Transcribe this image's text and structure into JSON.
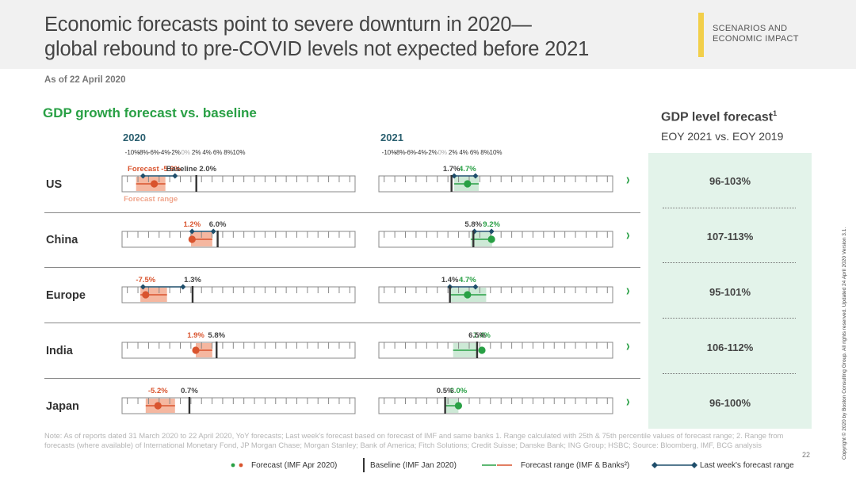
{
  "header": {
    "title_line1": "Economic forecasts point to severe downturn in 2020—",
    "title_line2": "global rebound to pre-COVID levels not expected before 2021",
    "tag_line1": "SCENARIOS AND",
    "tag_line2": "ECONOMIC IMPACT"
  },
  "as_of": "As of 22 April 2020",
  "section_title": "GDP growth forecast vs. baseline",
  "colors": {
    "forecast": "#d9542e",
    "range2020": "#f5b7a0",
    "green": "#29a045",
    "range2021": "#cde9d6",
    "navy": "#1f4e6b"
  },
  "chart_data": {
    "type": "range-dot",
    "years": [
      "2020",
      "2021"
    ],
    "x_ticks": [
      "-10%",
      "-8%",
      "-6%",
      "-4%",
      "-2%",
      "0%",
      "2%",
      "4%",
      "6%",
      "8%",
      "10%"
    ],
    "xlim": [
      -10,
      10
    ],
    "annotations": {
      "forecast_label": "Forecast",
      "baseline_label": "Baseline",
      "range_label": "Forecast range"
    },
    "countries": [
      {
        "name": "US",
        "y2020": {
          "forecast": -5.9,
          "forecast_label": "-5.9%",
          "baseline": 2.0,
          "baseline_label": "2.0%",
          "range": [
            -9.3,
            -3.8
          ],
          "last_week": [
            -8.0,
            -2.0
          ]
        },
        "y2021": {
          "forecast": 4.7,
          "forecast_label": "4.7%",
          "baseline": 1.7,
          "baseline_label": "1.7%",
          "range": [
            2.2,
            6.8
          ],
          "last_week": [
            2.2,
            6.2
          ]
        }
      },
      {
        "name": "China",
        "y2020": {
          "forecast": 1.2,
          "forecast_label": "1.2%",
          "baseline": 6.0,
          "baseline_label": "6.0%",
          "range": [
            1.0,
            5.0
          ],
          "last_week": [
            1.2,
            5.2
          ]
        },
        "y2021": {
          "forecast": 9.2,
          "forecast_label": "9.2%",
          "baseline": 5.8,
          "baseline_label": "5.8%",
          "range": [
            5.3,
            9.3
          ],
          "last_week": [
            6.0,
            9.2
          ]
        }
      },
      {
        "name": "Europe",
        "y2020": {
          "forecast": -7.5,
          "forecast_label": "-7.5%",
          "baseline": 1.3,
          "baseline_label": "1.3%",
          "range": [
            -8.5,
            -3.5
          ],
          "last_week": [
            -8.0,
            -0.5
          ]
        },
        "y2021": {
          "forecast": 4.7,
          "forecast_label": "4.7%",
          "baseline": 1.4,
          "baseline_label": "1.4%",
          "range": [
            1.4,
            8.2
          ],
          "last_week": [
            1.4,
            6.2
          ]
        }
      },
      {
        "name": "India",
        "y2020": {
          "forecast": 1.9,
          "forecast_label": "1.9%",
          "baseline": 5.8,
          "baseline_label": "5.8%",
          "range": [
            1.9,
            5.0
          ]
        },
        "y2021": {
          "forecast": 7.4,
          "forecast_label": "7.4%",
          "baseline": 6.5,
          "baseline_label": "6.5%",
          "range": [
            2.0,
            6.5
          ]
        }
      },
      {
        "name": "Japan",
        "y2020": {
          "forecast": -5.2,
          "forecast_label": "-5.2%",
          "baseline": 0.7,
          "baseline_label": "0.7%",
          "range": [
            -7.5,
            -2.0
          ]
        },
        "y2021": {
          "forecast": 3.0,
          "forecast_label": "3.0%",
          "baseline": 0.5,
          "baseline_label": "0.5%",
          "range": [
            0.5,
            3.0
          ]
        }
      }
    ],
    "legend": [
      "Forecast (IMF Apr 2020)",
      "Baseline (IMF Jan 2020)",
      "Forecast range (IMF & Banks²)",
      "Last week's forecast range"
    ]
  },
  "right_panel": {
    "heading": "GDP level forecast",
    "heading_sup": "1",
    "subheading": "EOY 2021 vs. EOY 2019",
    "values": [
      "96-103%",
      "107-113%",
      "95-101%",
      "106-112%",
      "96-100%"
    ]
  },
  "note": "Note: As of reports dated 31 March 2020 to 22 April 2020, YoY forecasts; Last week's forecast based on forecast of IMF and same banks 1. Range calculated with 25th & 75th percentile values of forecast range;   2. Range from forecasts (where available) of International Monetary Fond, JP Morgan Chase; Morgan Stanley; Bank of America; Fitch Solutions; Credit Suisse; Danske Bank; ING Group; HSBC;   Source: Bloomberg, IMF, BCG analysis",
  "page_number": "22",
  "copyright": "Copyright © 2020 by Boston Consulting Group. All rights reserved.   Updated 24 April 2020 Version 3.1."
}
